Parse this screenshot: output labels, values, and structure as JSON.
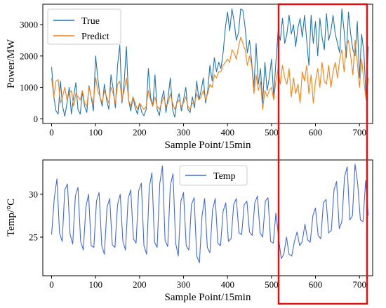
{
  "chart_data": [
    {
      "type": "line",
      "xlabel": "Sample Point/15min",
      "ylabel": "Power/MW",
      "xlim": [
        -20,
        730
      ],
      "ylim": [
        -150,
        3650
      ],
      "xticks": [
        0,
        100,
        200,
        300,
        400,
        500,
        600,
        700
      ],
      "yticks": [
        0,
        1000,
        2000,
        3000
      ],
      "legend_position": "top-left",
      "series": [
        {
          "name": "True",
          "color": "#1f77b4",
          "x": [
            0,
            5,
            10,
            15,
            20,
            25,
            30,
            35,
            40,
            45,
            50,
            55,
            60,
            65,
            70,
            75,
            80,
            85,
            90,
            95,
            100,
            105,
            110,
            115,
            120,
            125,
            130,
            135,
            140,
            145,
            150,
            155,
            160,
            165,
            170,
            175,
            180,
            185,
            190,
            195,
            200,
            205,
            210,
            215,
            220,
            225,
            230,
            235,
            240,
            245,
            250,
            255,
            260,
            265,
            270,
            275,
            280,
            285,
            290,
            295,
            300,
            305,
            310,
            315,
            320,
            325,
            330,
            335,
            340,
            345,
            350,
            355,
            360,
            365,
            370,
            375,
            380,
            385,
            390,
            395,
            400,
            405,
            410,
            415,
            420,
            425,
            430,
            435,
            440,
            445,
            450,
            455,
            460,
            465,
            470,
            475,
            480,
            485,
            490,
            495,
            500,
            505,
            510,
            515,
            520,
            525,
            530,
            535,
            540,
            545,
            550,
            555,
            560,
            565,
            570,
            575,
            580,
            585,
            590,
            595,
            600,
            605,
            610,
            615,
            620,
            625,
            630,
            635,
            640,
            645,
            650,
            655,
            660,
            665,
            670,
            675,
            680,
            685,
            690,
            695,
            700,
            705,
            710,
            715,
            720
          ],
          "values": [
            1650,
            700,
            250,
            150,
            1200,
            400,
            80,
            500,
            1000,
            150,
            700,
            1150,
            300,
            150,
            850,
            400,
            200,
            1050,
            700,
            250,
            2000,
            1300,
            700,
            400,
            1100,
            600,
            300,
            1400,
            950,
            350,
            1700,
            2350,
            500,
            1150,
            2300,
            600,
            250,
            700,
            350,
            150,
            500,
            200,
            100,
            300,
            1600,
            700,
            400,
            1400,
            300,
            100,
            600,
            900,
            200,
            700,
            1300,
            300,
            50,
            550,
            800,
            250,
            600,
            1000,
            300,
            200,
            700,
            350,
            1200,
            600,
            900,
            1300,
            500,
            900,
            1700,
            1200,
            1950,
            1500,
            1800,
            1600,
            2100,
            2900,
            3400,
            2800,
            3500,
            3100,
            2500,
            2750,
            3500,
            3450,
            2900,
            2100,
            2500,
            1800,
            1000,
            2400,
            1100,
            1600,
            500,
            1800,
            900,
            1300,
            1900,
            700,
            1800,
            2800,
            2500,
            3200,
            2400,
            2700,
            3300,
            2700,
            3000,
            2300,
            2900,
            3200,
            2600,
            3300,
            2500,
            1700,
            3300,
            2400,
            3100,
            2000,
            3200,
            2600,
            2200,
            3350,
            2500,
            2800,
            3300,
            2700,
            2400,
            2100,
            3500,
            2800,
            1950,
            3400,
            2700,
            2200,
            2000,
            3100,
            1300,
            2700,
            2100,
            700,
            2300
          ]
        },
        {
          "name": "Predict",
          "color": "#ff7f0e",
          "x": [
            0,
            5,
            10,
            15,
            20,
            25,
            30,
            35,
            40,
            45,
            50,
            55,
            60,
            65,
            70,
            75,
            80,
            85,
            90,
            95,
            100,
            105,
            110,
            115,
            120,
            125,
            130,
            135,
            140,
            145,
            150,
            155,
            160,
            165,
            170,
            175,
            180,
            185,
            190,
            195,
            200,
            205,
            210,
            215,
            220,
            225,
            230,
            235,
            240,
            245,
            250,
            255,
            260,
            265,
            270,
            275,
            280,
            285,
            290,
            295,
            300,
            305,
            310,
            315,
            320,
            325,
            330,
            335,
            340,
            345,
            350,
            355,
            360,
            365,
            370,
            375,
            380,
            385,
            390,
            395,
            400,
            405,
            410,
            415,
            420,
            425,
            430,
            435,
            440,
            445,
            450,
            455,
            460,
            465,
            470,
            475,
            480,
            485,
            490,
            495,
            500,
            505,
            510,
            515,
            520,
            525,
            530,
            535,
            540,
            545,
            550,
            555,
            560,
            565,
            570,
            575,
            580,
            585,
            590,
            595,
            600,
            605,
            610,
            615,
            620,
            625,
            630,
            635,
            640,
            645,
            650,
            655,
            660,
            665,
            670,
            675,
            680,
            685,
            690,
            695,
            700,
            705,
            710,
            715,
            720
          ],
          "values": [
            1300,
            700,
            1200,
            1250,
            500,
            700,
            1000,
            600,
            800,
            900,
            400,
            800,
            700,
            600,
            900,
            500,
            400,
            1000,
            700,
            500,
            1300,
            900,
            700,
            500,
            900,
            700,
            500,
            1000,
            800,
            500,
            1100,
            1200,
            600,
            900,
            1300,
            600,
            400,
            700,
            500,
            300,
            500,
            400,
            300,
            400,
            900,
            600,
            400,
            700,
            400,
            300,
            500,
            700,
            400,
            500,
            800,
            500,
            300,
            500,
            600,
            400,
            500,
            700,
            400,
            300,
            500,
            500,
            800,
            600,
            700,
            900,
            600,
            800,
            1100,
            1000,
            1400,
            1300,
            1500,
            1500,
            1700,
            1800,
            1900,
            1800,
            2200,
            2100,
            1900,
            2300,
            2600,
            2400,
            2200,
            1700,
            2000,
            1700,
            800,
            1400,
            900,
            1200,
            300,
            900,
            700,
            900,
            1000,
            600,
            1200,
            1600,
            1100,
            1700,
            1300,
            1100,
            1600,
            700,
            1300,
            800,
            1100,
            500,
            1500,
            1200,
            1700,
            800,
            1400,
            500,
            1200,
            1600,
            1000,
            1800,
            1200,
            1100,
            1700,
            1000,
            1500,
            1800,
            1300,
            1900,
            2200,
            1500,
            2300,
            2500,
            2000,
            1400,
            2500,
            1800,
            1000,
            1900,
            1200,
            600,
            1300
          ]
        }
      ]
    },
    {
      "type": "line",
      "xlabel": "Sample Point/15min",
      "ylabel": "Temp/°C",
      "xlim": [
        -20,
        730
      ],
      "ylim": [
        20.5,
        34
      ],
      "xticks": [
        0,
        100,
        200,
        300,
        400,
        500,
        600,
        700
      ],
      "yticks": [
        25,
        30
      ],
      "legend_position": "top-center",
      "series": [
        {
          "name": "Temp",
          "color": "#4169e1",
          "x": [
            0,
            6,
            12,
            18,
            24,
            30,
            36,
            42,
            48,
            54,
            60,
            66,
            72,
            78,
            84,
            90,
            96,
            102,
            108,
            114,
            120,
            126,
            132,
            138,
            144,
            150,
            156,
            162,
            168,
            174,
            180,
            186,
            192,
            198,
            204,
            210,
            216,
            222,
            228,
            234,
            240,
            246,
            252,
            258,
            264,
            270,
            276,
            282,
            288,
            294,
            300,
            306,
            312,
            318,
            324,
            330,
            336,
            342,
            348,
            354,
            360,
            366,
            372,
            378,
            384,
            390,
            396,
            402,
            408,
            414,
            420,
            426,
            432,
            438,
            444,
            450,
            456,
            462,
            468,
            474,
            480,
            486,
            492,
            498,
            504,
            510,
            516,
            522,
            528,
            534,
            540,
            546,
            552,
            558,
            564,
            570,
            576,
            582,
            588,
            594,
            600,
            606,
            612,
            618,
            624,
            630,
            636,
            642,
            648,
            654,
            660,
            666,
            672,
            678,
            684,
            690,
            696,
            702,
            708,
            714,
            720
          ],
          "values": [
            25.3,
            29.5,
            31.8,
            25.5,
            24.5,
            30.5,
            31.2,
            25.3,
            24.2,
            29.8,
            30.8,
            24.5,
            23.5,
            28.5,
            30.0,
            24.0,
            23.8,
            29.2,
            30.2,
            24.0,
            23.0,
            28.5,
            29.5,
            24.1,
            23.8,
            28.8,
            30.0,
            24.5,
            23.5,
            29.5,
            30.5,
            24.8,
            24.3,
            30.4,
            31.3,
            24.0,
            23.0,
            30.8,
            32.5,
            24.4,
            23.8,
            31.3,
            33.3,
            24.6,
            23.9,
            31.0,
            32.4,
            24.3,
            22.8,
            29.2,
            30.2,
            24.0,
            23.5,
            28.8,
            29.6,
            22.8,
            22.0,
            27.5,
            29.5,
            23.8,
            23.2,
            28.2,
            29.5,
            24.3,
            24.0,
            28.0,
            29.0,
            24.5,
            24.8,
            28.8,
            29.5,
            25.5,
            25.3,
            28.8,
            29.2,
            25.6,
            25.2,
            29.0,
            29.8,
            25.5,
            25.0,
            29.2,
            29.6,
            24.5,
            24.3,
            27.8,
            25.0,
            22.5,
            23.0,
            25.0,
            23.0,
            22.8,
            24.5,
            25.6,
            24.0,
            24.5,
            26.5,
            24.7,
            24.4,
            27.5,
            28.4,
            25.2,
            24.8,
            29.0,
            29.4,
            25.5,
            25.8,
            30.5,
            31.5,
            26.0,
            26.8,
            32.0,
            33.2,
            27.0,
            27.5,
            33.5,
            31.2,
            27.0,
            26.8,
            31.6,
            27.5
          ]
        }
      ]
    }
  ]
}
